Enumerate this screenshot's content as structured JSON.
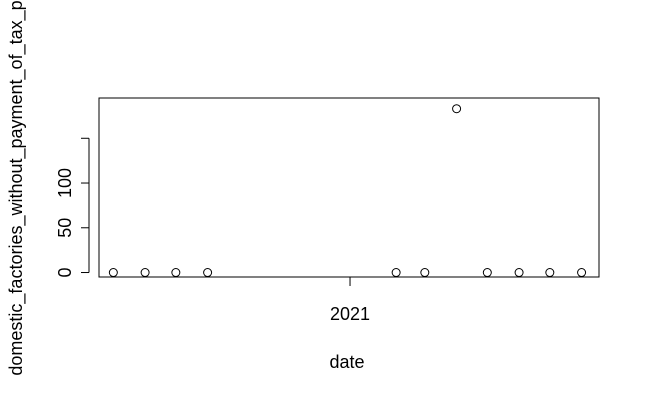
{
  "chart_data": {
    "type": "scatter",
    "xlabel": "date",
    "ylabel": "domestic_factories_without_payment_of_tax_p",
    "x_tick_labels": [
      "2021"
    ],
    "x_ticks": [
      "2021-01-01"
    ],
    "xlim": [
      "2020-05-01",
      "2021-09-01"
    ],
    "y_ticks": [
      0,
      50,
      100,
      150
    ],
    "y_tick_labels": [
      "0",
      "50",
      "100",
      ""
    ],
    "ylim": [
      -5,
      195
    ],
    "grid": false,
    "point_style": "open-circle",
    "x": [
      "2020-05-15",
      "2020-06-15",
      "2020-07-15",
      "2020-08-15",
      "2021-02-15",
      "2021-03-15",
      "2021-04-15",
      "2021-05-15",
      "2021-06-15",
      "2021-07-15",
      "2021-08-15"
    ],
    "y": [
      0,
      0,
      0,
      0,
      0,
      0,
      183,
      0,
      0,
      0,
      0
    ]
  }
}
